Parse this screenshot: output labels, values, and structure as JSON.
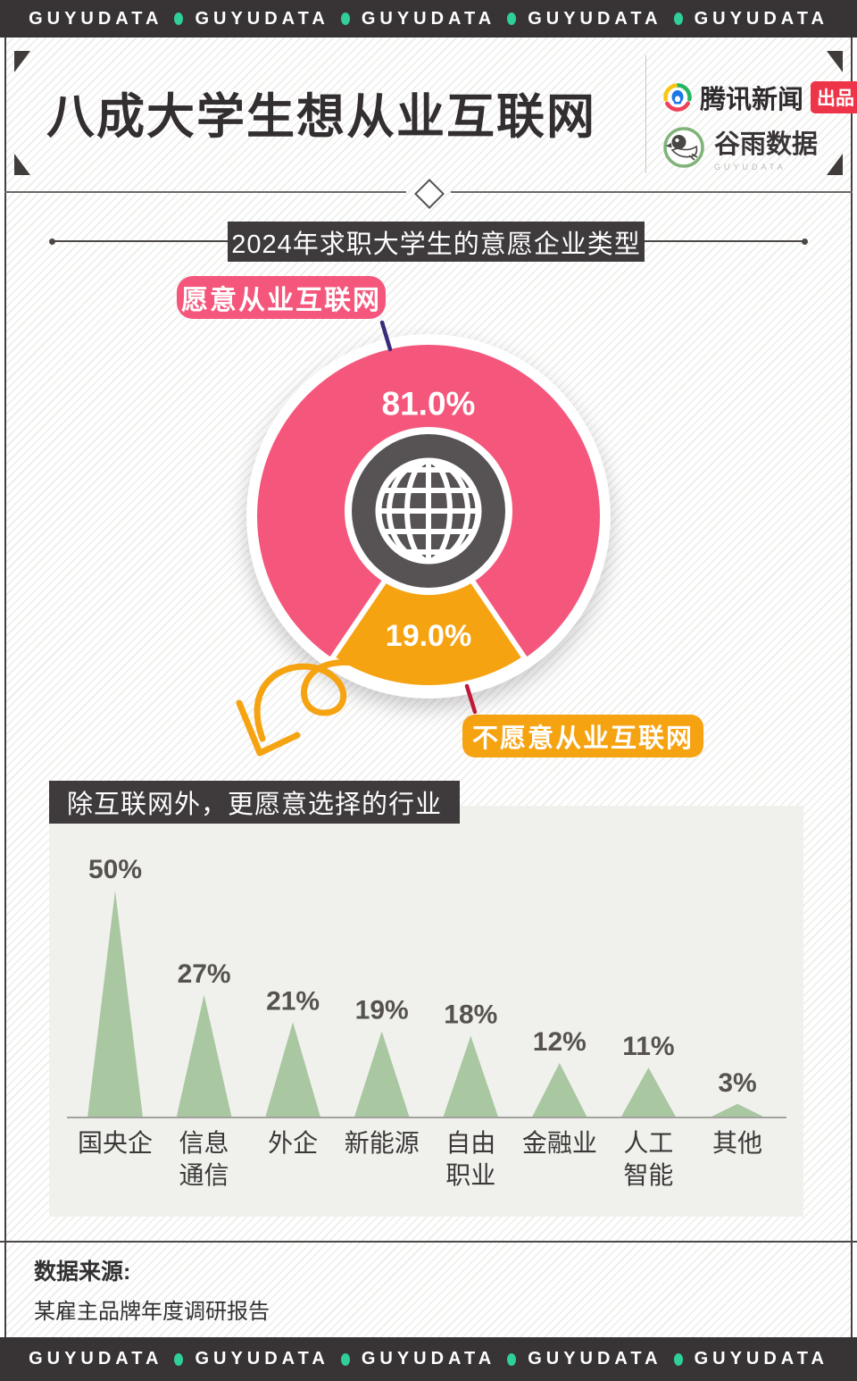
{
  "top_banner": {
    "brand": "GUYUDATA",
    "repeat": 5
  },
  "bottom_banner": {
    "brand": "GUYUDATA",
    "repeat": 5
  },
  "header": {
    "title": "八成大学生想从业互联网",
    "publisher": {
      "name": "腾讯新闻",
      "badge": "出品"
    },
    "brand": {
      "name": "谷雨数据",
      "latin": "GUYUDATA"
    }
  },
  "section": {
    "title": "2024年求职大学生的意愿企业类型"
  },
  "chart_data": [
    {
      "type": "pie",
      "title": "2024年求职大学生的意愿企业类型",
      "slices": [
        {
          "label": "愿意从业互联网",
          "value": 81.0,
          "display": "81.0%",
          "color": "#F4577B"
        },
        {
          "label": "不愿意从业互联网",
          "value": 19.0,
          "display": "19.0%",
          "color": "#F6A312"
        }
      ],
      "center_icon": "globe-icon",
      "legend_position": "floating-callout-labels"
    },
    {
      "type": "bar",
      "title": "除互联网外，更愿意选择的行业",
      "categories": [
        "国央企",
        "信息通信",
        "外企",
        "新能源",
        "自由职业",
        "金融业",
        "人工智能",
        "其他"
      ],
      "values": [
        50,
        27,
        21,
        19,
        18,
        12,
        11,
        3
      ],
      "value_labels": [
        "50%",
        "27%",
        "21%",
        "19%",
        "18%",
        "12%",
        "11%",
        "3%"
      ],
      "bar_color": "#A9C7A1",
      "bar_shape": "triangle",
      "xlabel": "",
      "ylabel": "",
      "ylim": [
        0,
        50
      ],
      "grid": false,
      "baseline_color": "#A3A19E"
    }
  ],
  "footer": {
    "source_label": "数据来源:",
    "source_text": "某雇主品牌年度调研报告"
  },
  "colors": {
    "banner_bg": "#383435",
    "banner_dot_green": "#2FCE9B",
    "accent_pink": "#F4577B",
    "accent_orange": "#F6A312",
    "badge_red": "#EE3448",
    "dark_box": "#3F3B3C",
    "triangle_green": "#A9C7A1",
    "panel_bg": "#F0F1ED",
    "callout_purple": "#3A2A7A",
    "callout_red": "#C01937",
    "pie_center_gray": "#575254"
  }
}
